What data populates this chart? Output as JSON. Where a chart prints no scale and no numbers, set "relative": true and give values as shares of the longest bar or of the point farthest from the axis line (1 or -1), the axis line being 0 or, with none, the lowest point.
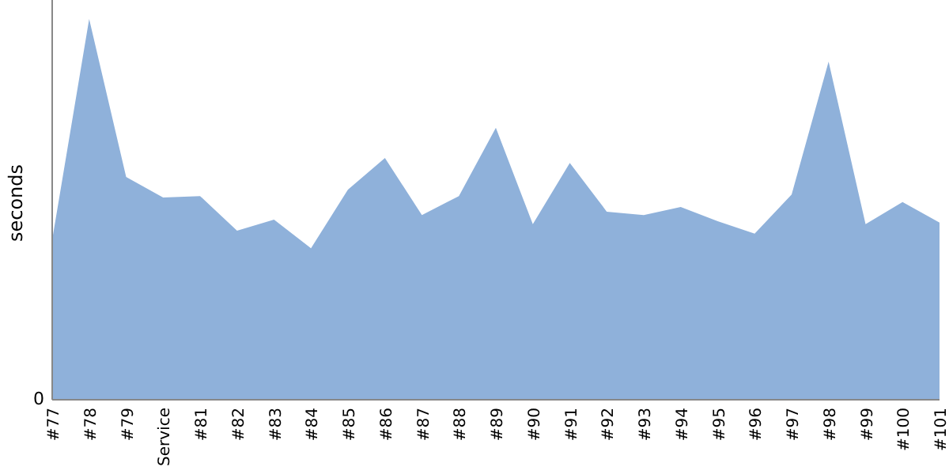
{
  "chart_data": {
    "type": "area",
    "ylabel": "seconds",
    "relative": true,
    "annotations": [
      "0"
    ],
    "categories": [
      "#77",
      "#78",
      "#79",
      "Service",
      "#81",
      "#82",
      "#83",
      "#84",
      "#85",
      "#86",
      "#87",
      "#88",
      "#89",
      "#90",
      "#91",
      "#92",
      "#93",
      "#94",
      "#95",
      "#96",
      "#97",
      "#98",
      "#99",
      "#100",
      "#101"
    ],
    "series": [
      {
        "color": "#8fb1da",
        "values": [
          0.42,
          1,
          0.585,
          0.531,
          0.535,
          0.444,
          0.473,
          0.398,
          0.552,
          0.635,
          0.485,
          0.535,
          0.714,
          0.461,
          0.622,
          0.494,
          0.485,
          0.506,
          0.469,
          0.436,
          0.539,
          0.888,
          0.461,
          0.519,
          0.465
        ]
      }
    ]
  }
}
